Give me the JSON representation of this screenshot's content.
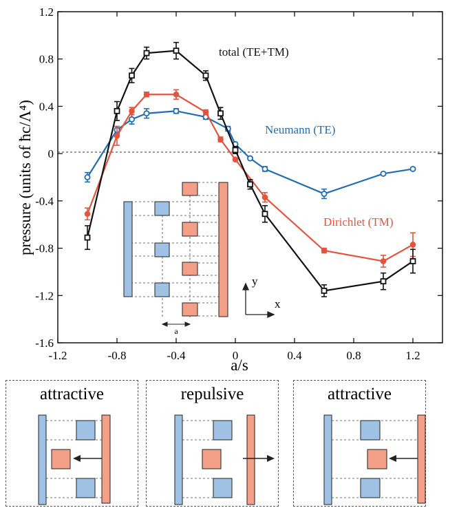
{
  "chart_data": {
    "type": "line",
    "xlabel": "a/s",
    "ylabel": "pressure (units of ħc/Λ⁴)",
    "xlim": [
      -1.2,
      1.4
    ],
    "ylim": [
      -1.6,
      1.2
    ],
    "xticks": [
      "-1.2",
      "-0.8",
      "-0.4",
      "0",
      "0.4",
      "0.8",
      "1.2"
    ],
    "yticks": [
      "1.2",
      "0.8",
      "0.4",
      "0",
      "-0.4",
      "-0.8",
      "-1.2",
      "-1.6"
    ],
    "zero_line": "dotted",
    "series": [
      {
        "name": "total (TE+TM)",
        "color": "#111111",
        "marker": "square",
        "x": [
          -1.0,
          -0.8,
          -0.7,
          -0.6,
          -0.4,
          -0.2,
          -0.1,
          0.0,
          0.1,
          0.2,
          0.6,
          1.0,
          1.2
        ],
        "y": [
          -0.71,
          0.36,
          0.66,
          0.85,
          0.87,
          0.66,
          0.34,
          0.03,
          -0.26,
          -0.51,
          -1.16,
          -1.08,
          -0.91
        ],
        "err": [
          0.1,
          0.08,
          0.06,
          0.05,
          0.07,
          0.04,
          0.05,
          0.03,
          0.04,
          0.07,
          0.05,
          0.07,
          0.1
        ]
      },
      {
        "name": "Dirichlet (TM)",
        "color": "#e5533f",
        "marker": "filled-circle",
        "x": [
          -1.0,
          -0.8,
          -0.7,
          -0.6,
          -0.4,
          -0.2,
          -0.1,
          0.0,
          0.2,
          0.6,
          1.0,
          1.2
        ],
        "y": [
          -0.51,
          0.15,
          0.36,
          0.5,
          0.5,
          0.35,
          0.12,
          -0.05,
          -0.37,
          -0.82,
          -0.91,
          -0.77
        ],
        "err": [
          0.05,
          0.08,
          0.03,
          0.02,
          0.04,
          0.02,
          0.02,
          0.01,
          0.04,
          0.02,
          0.05,
          0.1
        ]
      },
      {
        "name": "Neumann (TE)",
        "color": "#1f6db4",
        "marker": "open-circle",
        "x": [
          -1.0,
          -0.8,
          -0.7,
          -0.6,
          -0.4,
          -0.2,
          -0.05,
          0.0,
          0.1,
          0.2,
          0.6,
          1.0,
          1.2
        ],
        "y": [
          -0.2,
          0.2,
          0.29,
          0.34,
          0.36,
          0.31,
          0.21,
          0.08,
          -0.04,
          -0.13,
          -0.34,
          -0.17,
          -0.13
        ],
        "err": [
          0.04,
          0.03,
          0.04,
          0.04,
          0.02,
          0.02,
          0.02,
          0.01,
          0.01,
          0.02,
          0.04,
          0.01,
          0.01
        ]
      }
    ],
    "inset_labels": {
      "y_axis": "y",
      "x_axis": "x",
      "offset": "a"
    },
    "panels": [
      "attractive",
      "repulsive",
      "attractive"
    ]
  },
  "colors": {
    "blue_plate": "#9ec1e4",
    "red_plate": "#f4a088"
  }
}
